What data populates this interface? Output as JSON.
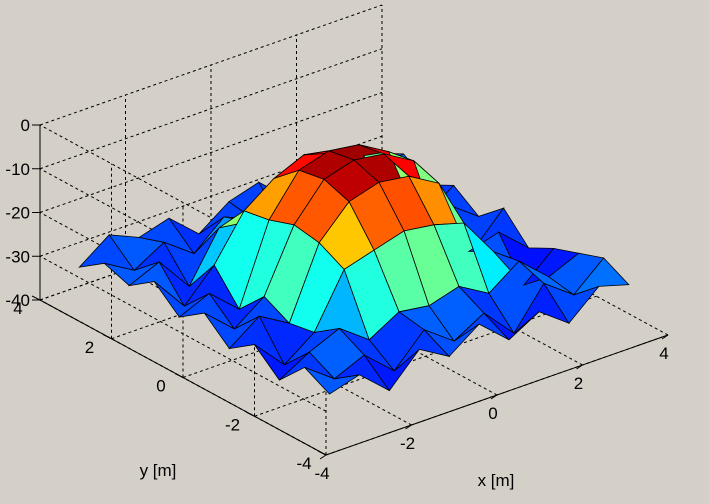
{
  "chart_data": {
    "type": "surface",
    "title": "",
    "xlabel": "x [m]",
    "ylabel": "y [m]",
    "zlabel": "",
    "xlim": [
      -4,
      4
    ],
    "ylim": [
      -4,
      4
    ],
    "zlim": [
      -40,
      0
    ],
    "xticks": [
      "-4",
      "-2",
      "0",
      "2",
      "4"
    ],
    "yticks": [
      "-4",
      "-2",
      "0",
      "2",
      "4"
    ],
    "zticks": [
      "-40",
      "-30",
      "-20",
      "-10",
      "0"
    ],
    "grid": true,
    "colormap": "jet",
    "background": "#d4d0c8",
    "x": [
      -3.5,
      -2.8,
      -2.1,
      -1.4,
      -0.7,
      0,
      0.7,
      1.4,
      2.1,
      2.8,
      3.5
    ],
    "y": [
      -3.5,
      -2.8,
      -2.1,
      -1.4,
      -0.7,
      0,
      0.7,
      1.4,
      2.1,
      2.8,
      3.5
    ],
    "z": [
      [
        -30,
        -28,
        -34,
        -27,
        -31,
        -26,
        -32,
        -28,
        -33,
        -27,
        -29
      ],
      [
        -27,
        -32,
        -29,
        -35,
        -28,
        -33,
        -29,
        -36,
        -27,
        -32,
        -26
      ],
      [
        -33,
        -29,
        -26,
        -31,
        -27,
        -28,
        -26,
        -30,
        -25,
        -31,
        -28
      ],
      [
        -28,
        -35,
        -30,
        -18,
        -16,
        -14,
        -15,
        -17,
        -26,
        -36,
        -30
      ],
      [
        -32,
        -27,
        -31,
        -15,
        -8,
        -6,
        -7,
        -11,
        -29,
        -27,
        -33
      ],
      [
        -27,
        -33,
        -28,
        -14,
        -6,
        -4,
        -5,
        -9,
        -31,
        -34,
        -27
      ],
      [
        -31,
        -28,
        -34,
        -16,
        -7,
        -5,
        -6,
        -10,
        -28,
        -27,
        -32
      ],
      [
        -26,
        -34,
        -27,
        -17,
        -12,
        -9,
        -11,
        -14,
        -30,
        -33,
        -28
      ],
      [
        -30,
        -27,
        -35,
        -24,
        -25,
        -27,
        -24,
        -28,
        -26,
        -29,
        -31
      ],
      [
        -28,
        -32,
        -28,
        -33,
        -27,
        -30,
        -34,
        -26,
        -31,
        -28,
        -27
      ],
      [
        -32,
        -27,
        -30,
        -28,
        -34,
        -29,
        -27,
        -33,
        -28,
        -32,
        -30
      ]
    ]
  }
}
